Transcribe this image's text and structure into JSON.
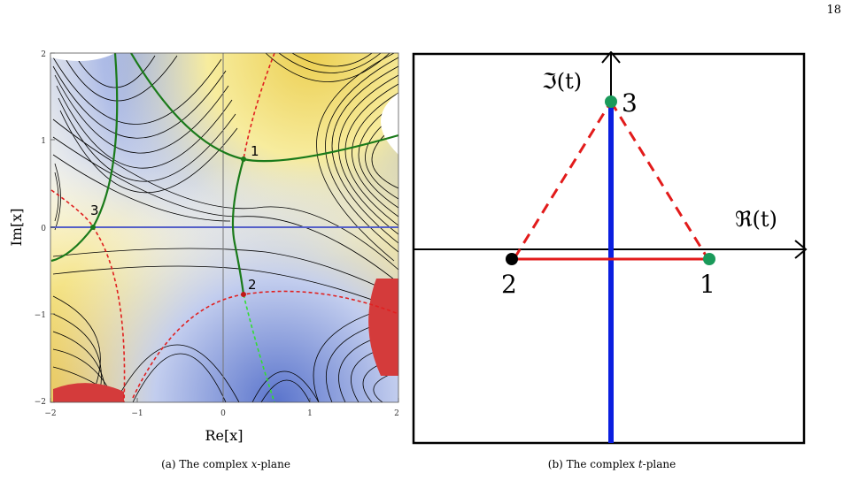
{
  "page_number": "18",
  "panel_a": {
    "caption_prefix": "(a) The complex ",
    "caption_var": "x",
    "caption_suffix": "-plane",
    "xlabel": "Re[x]",
    "ylabel": "Im[x]",
    "x_ticks": [
      "−2",
      "−1",
      "0",
      "1",
      "2"
    ],
    "y_ticks": [
      "2",
      "1",
      "0",
      "−1",
      "−2"
    ],
    "points": [
      {
        "label": "1",
        "re": 0.22,
        "im": 0.8
      },
      {
        "label": "2",
        "re": 0.22,
        "im": -0.77
      },
      {
        "label": "3",
        "re": -1.48,
        "im": 0.0
      }
    ],
    "colors": {
      "contour": "#000000",
      "green_curve": "#1a7a1a",
      "red_dashed": "#e02020",
      "light_green_dashed": "#33dd33",
      "real_axis": "#5560c8",
      "blue_region": "#4a63c6",
      "yellow_region": "#f2e05a"
    }
  },
  "panel_b": {
    "caption_prefix": "(b) The complex ",
    "caption_var": "t",
    "caption_suffix": "-plane",
    "imag_axis_label": "ℑ(t)",
    "real_axis_label": "ℜ(t)",
    "points": [
      {
        "label": "1",
        "color": "#1a9a5a"
      },
      {
        "label": "2",
        "color": "#000000"
      },
      {
        "label": "3",
        "color": "#1a9a5a"
      }
    ],
    "colors": {
      "segment": "#e21b1b",
      "cut": "#0a1ee0",
      "frame": "#000000"
    }
  }
}
